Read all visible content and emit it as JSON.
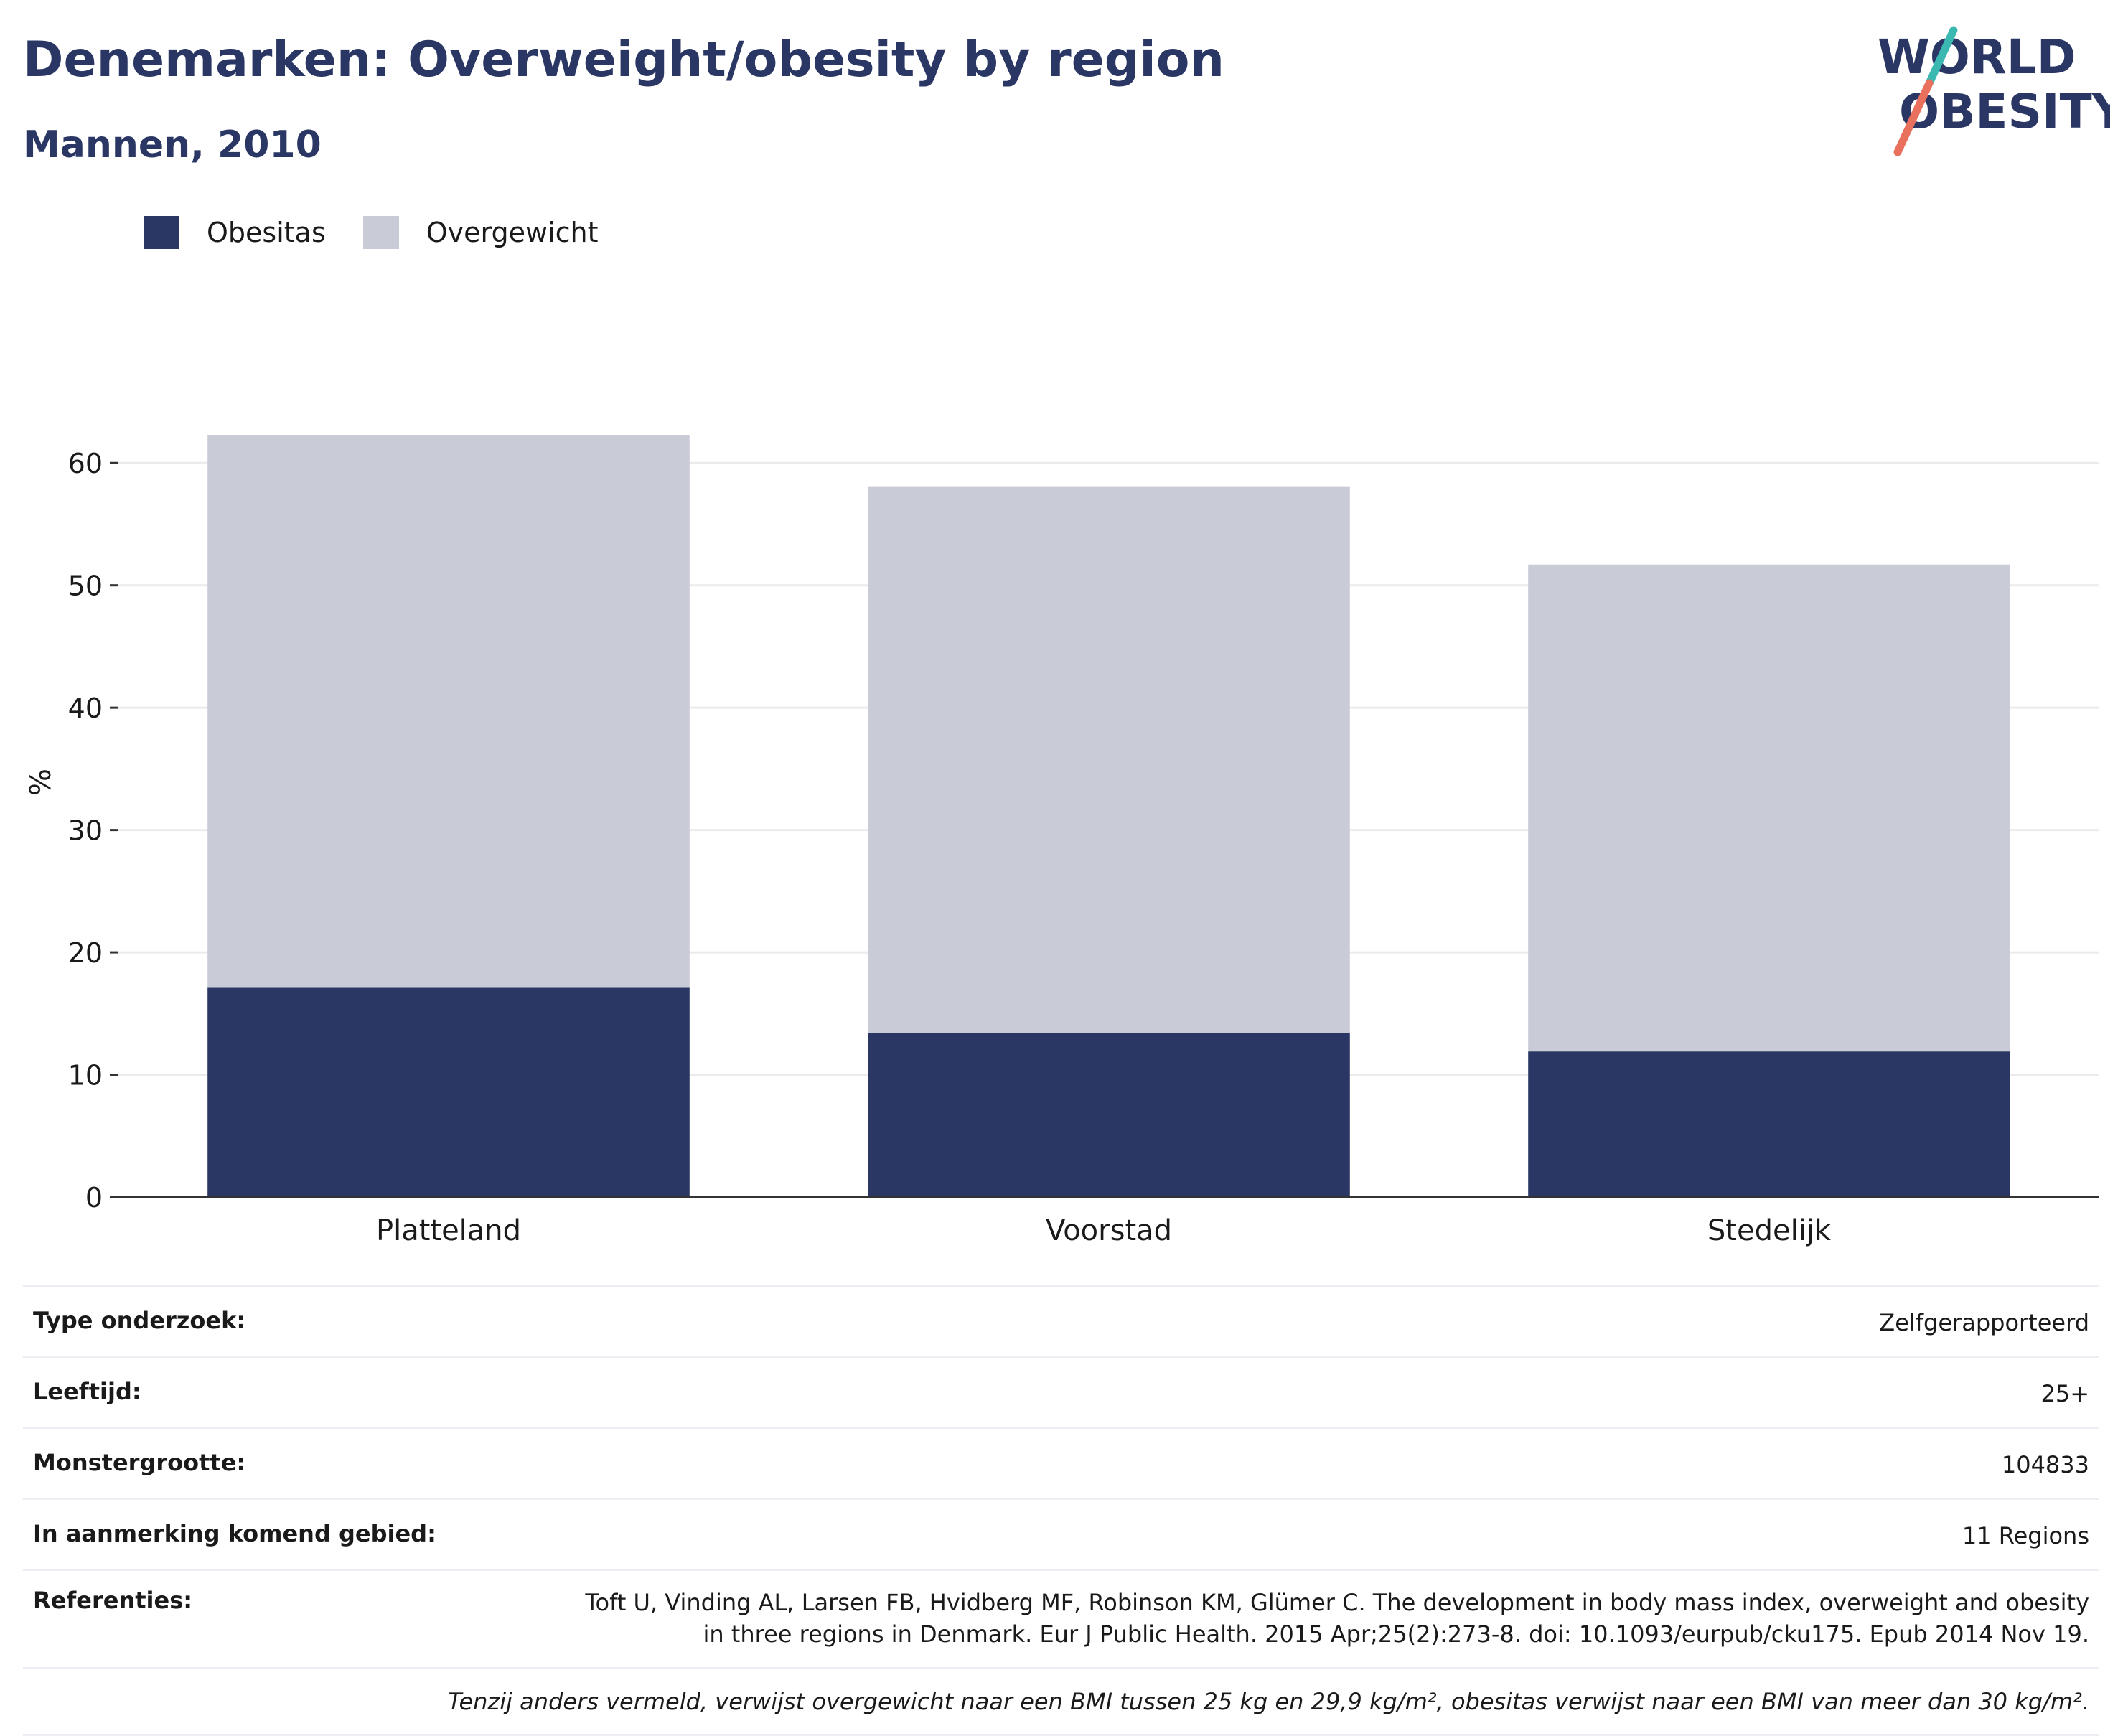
{
  "title": "Denemarken: Overweight/obesity by region",
  "subtitle": "Mannen, 2010",
  "logo": {
    "line1": "WORLD",
    "line2": "OBESITY",
    "icon": "world-obesity-logo"
  },
  "colors": {
    "obesitas": "#2a3663",
    "overgewicht": "#c9cbd7",
    "grid": "#ebebeb",
    "axis": "#333333"
  },
  "chart_data": {
    "type": "bar",
    "stacked": true,
    "categories": [
      "Platteland",
      "Voorstad",
      "Stedelijk"
    ],
    "series": [
      {
        "name": "Obesitas",
        "values": [
          17.1,
          13.4,
          11.9
        ]
      },
      {
        "name": "Overgewicht",
        "values": [
          45.2,
          44.7,
          39.8
        ]
      }
    ],
    "ylabel": "%",
    "ylim": [
      0,
      65
    ],
    "yticks": [
      0,
      10,
      20,
      30,
      40,
      50,
      60
    ],
    "grid": true,
    "legend_position": "top-left"
  },
  "info": {
    "rows": [
      {
        "label": "Type onderzoek:",
        "value": "Zelfgerapporteerd"
      },
      {
        "label": "Leeftijd:",
        "value": "25+"
      },
      {
        "label": "Monstergrootte:",
        "value": "104833"
      },
      {
        "label": "In aanmerking komend gebied:",
        "value": "11 Regions"
      },
      {
        "label": "Referenties:",
        "value": "Toft U, Vinding AL, Larsen FB, Hvidberg MF, Robinson KM, Glümer C. The development in body mass index, overweight and obesity in three regions in Denmark. Eur J Public Health. 2015 Apr;25(2):273-8. doi: 10.1093/eurpub/cku175. Epub 2014 Nov 19."
      }
    ],
    "note": "Tenzij anders vermeld, verwijst overgewicht naar een BMI tussen 25 kg en 29,9 kg/m², obesitas verwijst naar een BMI van meer dan 30 kg/m²."
  }
}
